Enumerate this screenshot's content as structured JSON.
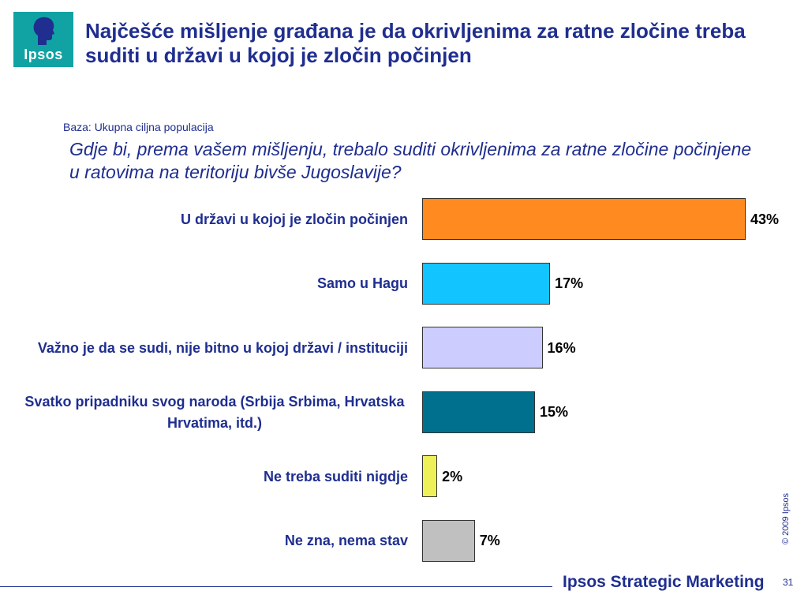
{
  "logo": {
    "text": "Ipsos"
  },
  "title": "Najčešće mišljenje građana je da okrivljenima za ratne zločine treba suditi u državi u kojoj je zločin počinjen",
  "base": "Baza: Ukupna ciljna populacija",
  "question": "Gdje bi, prema vašem mišljenju, trebalo suditi okrivljenima za ratne zločine počinjene u ratovima na teritoriju bivše Jugoslavije?",
  "chart_data": {
    "type": "bar",
    "orientation": "horizontal",
    "categories": [
      "U državi u kojoj je zločin počinjen",
      "Samo u Hagu",
      "Važno je da se sudi, nije bitno u kojoj državi / instituciji",
      "Svatko pripadniku svog naroda (Srbija Srbima, Hrvatska Hrvatima, itd.)",
      "Ne treba suditi nigdje",
      "Ne zna, nema stav"
    ],
    "values": [
      43,
      17,
      16,
      15,
      2,
      7
    ],
    "value_labels": [
      "43%",
      "17%",
      "16%",
      "15%",
      "2%",
      "7%"
    ],
    "colors": [
      "#ff8a1f",
      "#12c4ff",
      "#ccccff",
      "#00708f",
      "#eef05a",
      "#c0c0c0"
    ],
    "xlim": [
      0,
      43
    ],
    "grid": false,
    "legend": "none"
  },
  "footer": {
    "copyright": "© 2009 Ipsos",
    "brand": "Ipsos Strategic Marketing",
    "page": "31"
  }
}
